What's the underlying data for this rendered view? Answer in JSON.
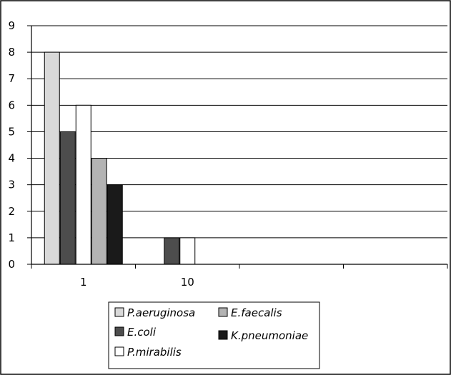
{
  "chart_data": {
    "type": "bar",
    "categories": [
      "1",
      "10",
      "",
      ""
    ],
    "series": [
      {
        "name": "P.aeruginosa",
        "values": [
          8,
          0,
          0,
          0
        ],
        "color": "#d9d9d9"
      },
      {
        "name": "E.coli",
        "values": [
          5,
          1,
          0,
          0
        ],
        "color": "#4d4d4d"
      },
      {
        "name": "P.mirabilis",
        "values": [
          6,
          1,
          0,
          0
        ],
        "color": "#ffffff"
      },
      {
        "name": "E.faecalis",
        "values": [
          4,
          0,
          0,
          0
        ],
        "color": "#b3b3b3"
      },
      {
        "name": "K.pneumoniae",
        "values": [
          3,
          0,
          0,
          0
        ],
        "color": "#1a1a1a"
      }
    ],
    "yticks": [
      "0",
      "1",
      "2",
      "3",
      "4",
      "5",
      "6",
      "7",
      "8",
      "9"
    ],
    "ylim": [
      0,
      9
    ],
    "grid": true,
    "legend_position": "bottom",
    "title": "",
    "xlabel": "",
    "ylabel": ""
  }
}
